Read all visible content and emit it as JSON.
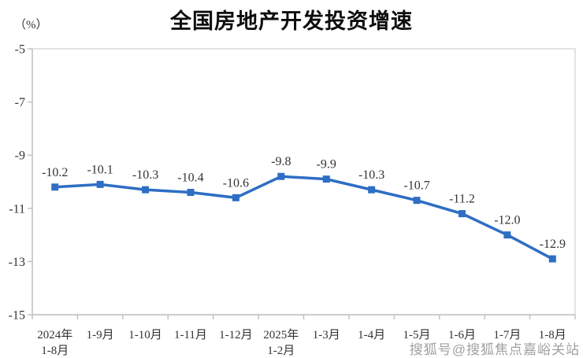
{
  "chart": {
    "title": "全国房地产开发投资增速",
    "unit_label": "（%）"
  },
  "watermark": {
    "text": "搜狐号@搜狐焦点嘉峪关站"
  },
  "chart_data": {
    "type": "line",
    "title": "全国房地产开发投资增速",
    "ylabel": "（%）",
    "categories": [
      "2024年\n1-8月",
      "1-9月",
      "1-10月",
      "1-11月",
      "1-12月",
      "2025年\n1-2月",
      "1-3月",
      "1-4月",
      "1-5月",
      "1-6月",
      "1-7月",
      "1-8月"
    ],
    "values": [
      -10.2,
      -10.1,
      -10.3,
      -10.4,
      -10.6,
      -9.8,
      -9.9,
      -10.3,
      -10.7,
      -11.2,
      -12.0,
      -12.9
    ],
    "data_labels": [
      "-10.2",
      "-10.1",
      "-10.3",
      "-10.4",
      "-10.6",
      "-9.8",
      "-9.9",
      "-10.3",
      "-10.7",
      "-11.2",
      "-12.0",
      "-12.9"
    ],
    "ylim": [
      -15,
      -5
    ],
    "y_ticks": [
      -5,
      -7,
      -9,
      -11,
      -13,
      -15
    ],
    "grid": false,
    "legend": "none",
    "marker": "square",
    "line_color": "#2E6EC4",
    "label_color": "#333333",
    "axis_color": "#BFBFBF",
    "border_color": "#D9D9D9"
  }
}
